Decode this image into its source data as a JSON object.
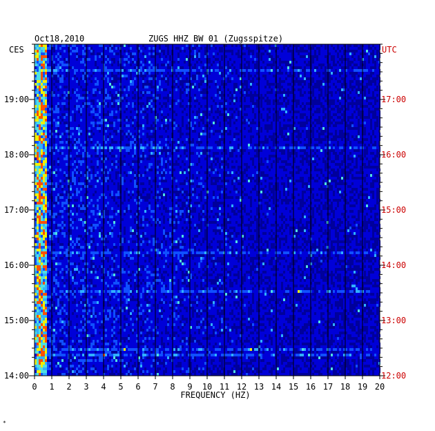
{
  "chart_data": {
    "type": "heatmap",
    "date": "Oct18,2010",
    "title": "ZUGS HHZ BW 01 (Zugsspitze)",
    "left_timezone": "CES",
    "right_timezone": "UTC",
    "xlabel": "FREQUENCY (HZ)",
    "xlim": [
      0,
      20
    ],
    "x_ticks": [
      "0",
      "1",
      "2",
      "3",
      "4",
      "5",
      "6",
      "7",
      "8",
      "9",
      "10",
      "11",
      "12",
      "13",
      "14",
      "15",
      "16",
      "17",
      "18",
      "19",
      "20"
    ],
    "left_time_ticks": [
      "19:00",
      "18:00",
      "17:00",
      "16:00",
      "15:00",
      "14:00"
    ],
    "right_time_ticks": [
      "17:00",
      "16:00",
      "15:00",
      "14:00",
      "13:00",
      "12:00"
    ],
    "time_range_ces": [
      "14:00",
      "20:00"
    ],
    "grid": true,
    "colorscale": [
      "#00009b",
      "#0000d8",
      "#1050ff",
      "#30b0ff",
      "#50e0e0",
      "#f0f000",
      "#ff5000",
      "#dd0000"
    ],
    "footnote": "*"
  },
  "colors": {
    "utc_labels": "#cc0000",
    "background": "#00009b",
    "grid": "#000000"
  }
}
